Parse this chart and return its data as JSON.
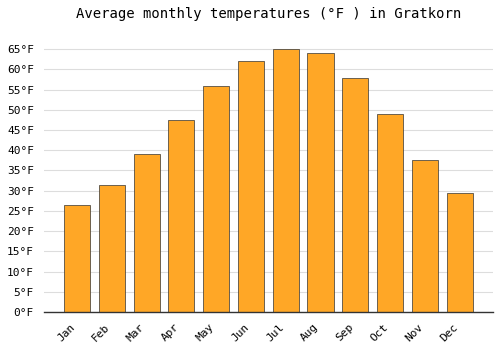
{
  "title": "Average monthly temperatures (°F ) in Gratkorn",
  "months": [
    "Jan",
    "Feb",
    "Mar",
    "Apr",
    "May",
    "Jun",
    "Jul",
    "Aug",
    "Sep",
    "Oct",
    "Nov",
    "Dec"
  ],
  "values": [
    26.5,
    31.5,
    39.0,
    47.5,
    56.0,
    62.0,
    65.0,
    64.0,
    58.0,
    49.0,
    37.5,
    29.5
  ],
  "bar_color": "#FFA726",
  "bar_edge_color": "#333333",
  "ylim": [
    0,
    70
  ],
  "yticks": [
    0,
    5,
    10,
    15,
    20,
    25,
    30,
    35,
    40,
    45,
    50,
    55,
    60,
    65
  ],
  "background_color": "#ffffff",
  "grid_color": "#dddddd",
  "title_fontsize": 10,
  "tick_fontsize": 8,
  "font_family": "monospace"
}
